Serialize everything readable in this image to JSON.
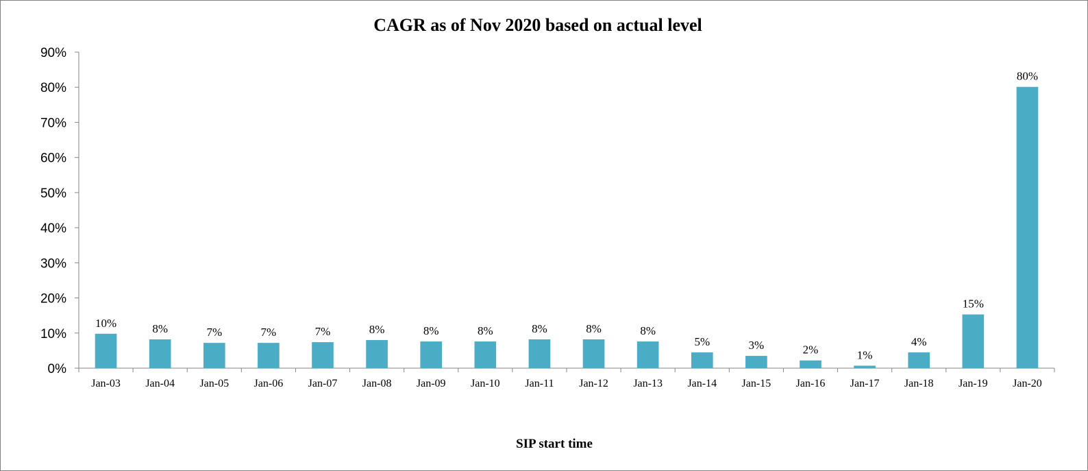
{
  "chart_data": {
    "type": "bar",
    "title": "CAGR as of Nov 2020 based on actual level",
    "xlabel": "SIP start time",
    "ylabel": "",
    "ylim": [
      0,
      90
    ],
    "yticks": [
      0,
      10,
      20,
      30,
      40,
      50,
      60,
      70,
      80,
      90
    ],
    "ytick_labels": [
      "0%",
      "10%",
      "20%",
      "30%",
      "40%",
      "50%",
      "60%",
      "70%",
      "80%",
      "90%"
    ],
    "grid": false,
    "legend": "none",
    "bar_color": "#4BACC6",
    "categories": [
      "Jan-03",
      "Jan-04",
      "Jan-05",
      "Jan-06",
      "Jan-07",
      "Jan-08",
      "Jan-09",
      "Jan-10",
      "Jan-11",
      "Jan-12",
      "Jan-13",
      "Jan-14",
      "Jan-15",
      "Jan-16",
      "Jan-17",
      "Jan-18",
      "Jan-19",
      "Jan-20"
    ],
    "values": [
      9.8,
      8.2,
      7.2,
      7.2,
      7.4,
      8.0,
      7.6,
      7.6,
      8.2,
      8.2,
      7.6,
      4.5,
      3.5,
      2.2,
      0.7,
      4.5,
      15.3,
      80.1
    ],
    "data_labels": [
      "10%",
      "8%",
      "7%",
      "7%",
      "7%",
      "8%",
      "8%",
      "8%",
      "8%",
      "8%",
      "8%",
      "5%",
      "3%",
      "2%",
      "1%",
      "4%",
      "15%",
      "80%"
    ]
  }
}
